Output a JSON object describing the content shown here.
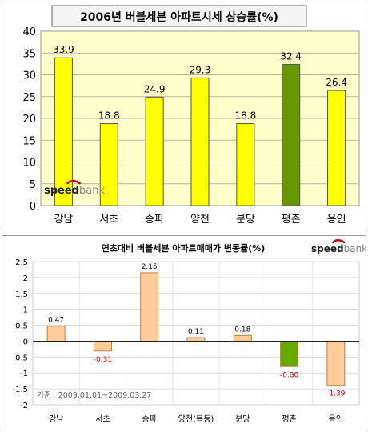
{
  "logo_text": "speedbank",
  "chart_data": [
    {
      "type": "bar",
      "title": "2006년 버블세븐 아파트시세 상승률(%)",
      "categories": [
        "강남",
        "서초",
        "송파",
        "양천",
        "분당",
        "평촌",
        "용인"
      ],
      "values": [
        33.9,
        18.8,
        24.9,
        29.3,
        18.8,
        32.4,
        26.4
      ],
      "value_labels": [
        "33.9",
        "18.8",
        "24.9",
        "29.3",
        "18.8",
        "32.4",
        "26.4"
      ],
      "y_ticks": [
        "0",
        "5",
        "10",
        "15",
        "20",
        "25",
        "30",
        "35",
        "40"
      ],
      "ylim": [
        0,
        40
      ],
      "grid": true,
      "highlight_index": 5,
      "colors": {
        "bar": "#ffff00",
        "highlight": "#669900",
        "plot_bg": "#ffffcc",
        "plot_border": "#999999"
      }
    },
    {
      "type": "bar",
      "title": "연초대비 버블세븐 아파트매매가 변동률(%)",
      "categories": [
        "강남",
        "서초",
        "송파",
        "양천(목동)",
        "분당",
        "평촌",
        "용인"
      ],
      "values": [
        0.47,
        -0.31,
        2.15,
        0.11,
        0.18,
        -0.8,
        -1.39
      ],
      "value_labels": [
        "0.47",
        "-0.31",
        "2.15",
        "0.11",
        "0.18",
        "-0.80",
        "-1.39"
      ],
      "y_ticks": [
        "-2",
        "-1.5",
        "-1",
        "-0.5",
        "0",
        "0.5",
        "1",
        "1.5",
        "2",
        "2.5"
      ],
      "ylim": [
        -2,
        2.5
      ],
      "grid": true,
      "highlight_index": 5,
      "note": "기준 : 2009.01.01~2009.03.27",
      "colors": {
        "bar": "#ffcc99",
        "highlight": "#66aa00",
        "negative_label": "#cc0000",
        "plot_bg": "#ffffff",
        "plot_border": "#cccccc"
      }
    }
  ]
}
